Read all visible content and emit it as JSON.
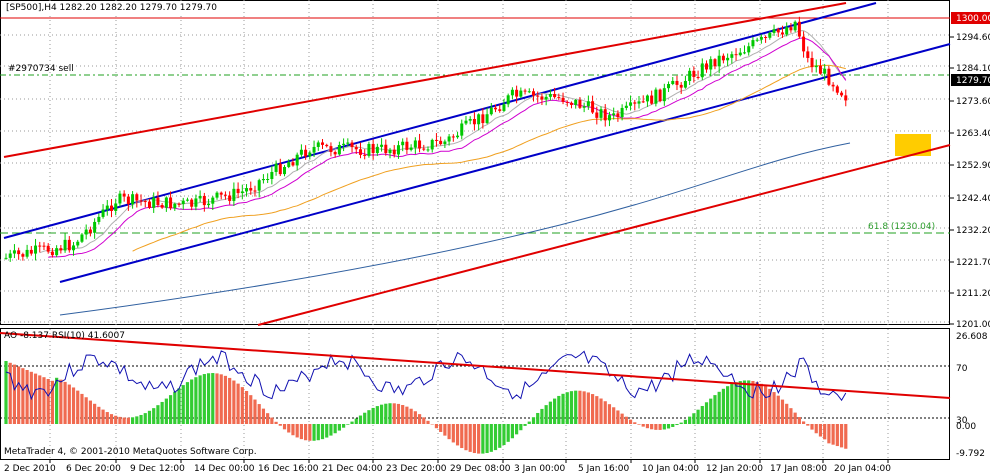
{
  "header": {
    "symbol_info": "[SP500],H4  1282.20  1282.20  1279.70  1279.70"
  },
  "order_label": "#2970734 sell",
  "fibo_label": "61.8 (1230.04)",
  "price_axis": {
    "ticks": [
      "1294.60",
      "1284.10",
      "1273.60",
      "1263.40",
      "1252.90",
      "1242.40",
      "1232.20",
      "1221.70",
      "1211.20",
      "1201.00"
    ],
    "badge_red": "1300.00",
    "badge_current": "1279.70"
  },
  "indicator": {
    "label": "AO -8.137  RSI(10) 41.6007",
    "axis": [
      "26.608",
      "70",
      "30",
      "0.00",
      "-9.792"
    ]
  },
  "copyright": "MetaTrader 4, © 2001-2010 MetaQuotes Software Corp.",
  "time_axis": [
    "2 Dec 2010",
    "6 Dec 20:00",
    "9 Dec 12:00",
    "14 Dec 00:00",
    "16 Dec 16:00",
    "21 Dec 04:00",
    "23 Dec 20:00",
    "29 Dec 08:00",
    "3 Jan 00:00",
    "5 Jan 16:00",
    "10 Jan 04:00",
    "12 Jan 20:00",
    "17 Jan 08:00",
    "20 Jan 04:00"
  ],
  "colors": {
    "bull": "#00c800",
    "bear": "#ff0000",
    "channel_blue": "#0000c8",
    "channel_red": "#e00000",
    "ao_up": "#33cc33",
    "ao_down": "#f06a50",
    "rsi": "#1010b0",
    "ma_fast": "#d000d0",
    "ma_slow": "#f0a020",
    "ma_long": "#3060a0",
    "fibo": "#20a020",
    "target_zone": "#ffcc00"
  }
}
